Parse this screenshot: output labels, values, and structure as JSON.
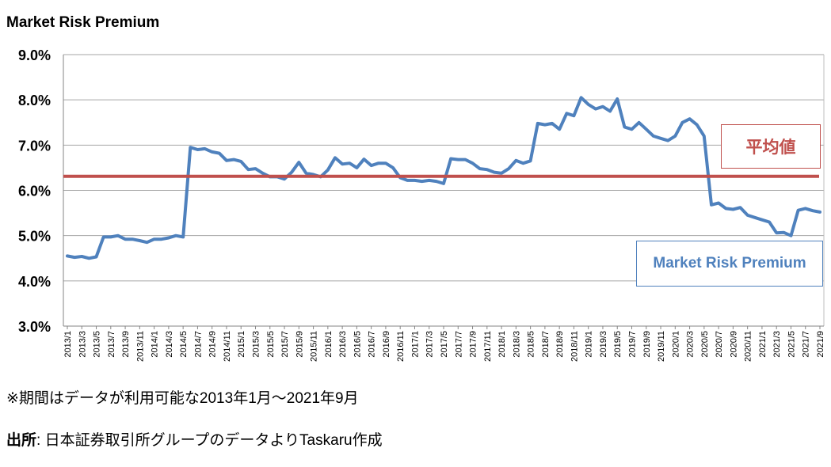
{
  "chart_data": {
    "type": "line",
    "title": "Market Risk Premium",
    "ylim": [
      3.0,
      9.0
    ],
    "y_ticks": [
      "9.0%",
      "8.0%",
      "7.0%",
      "6.0%",
      "5.0%",
      "4.0%",
      "3.0%"
    ],
    "grid": true,
    "x_labels": [
      "2013/1",
      "2013/3",
      "2013/5",
      "2013/7",
      "2013/9",
      "2013/11",
      "2014/1",
      "2014/3",
      "2014/5",
      "2014/7",
      "2014/9",
      "2014/11",
      "2015/1",
      "2015/3",
      "2015/5",
      "2015/7",
      "2015/9",
      "2015/11",
      "2016/1",
      "2016/3",
      "2016/5",
      "2016/7",
      "2016/9",
      "2016/11",
      "2017/1",
      "2017/3",
      "2017/5",
      "2017/7",
      "2017/9",
      "2017/11",
      "2018/1",
      "2018/3",
      "2018/5",
      "2018/7",
      "2018/9",
      "2018/11",
      "2019/1",
      "2019/3",
      "2019/5",
      "2019/7",
      "2019/9",
      "2019/11",
      "2020/1",
      "2020/3",
      "2020/5",
      "2020/7",
      "2020/9",
      "2020/11",
      "2021/1",
      "2021/3",
      "2021/5",
      "2021/7",
      "2021/9"
    ],
    "series": [
      {
        "name": "Market Risk Premium",
        "color": "#4f81bd",
        "values": [
          4.55,
          4.52,
          4.54,
          4.5,
          4.53,
          4.97,
          4.97,
          5.0,
          4.92,
          4.92,
          4.89,
          4.85,
          4.92,
          4.92,
          4.95,
          5.0,
          4.97,
          6.95,
          6.9,
          6.92,
          6.85,
          6.82,
          6.66,
          6.68,
          6.64,
          6.46,
          6.48,
          6.38,
          6.3,
          6.3,
          6.25,
          6.4,
          6.62,
          6.38,
          6.35,
          6.3,
          6.45,
          6.72,
          6.58,
          6.6,
          6.5,
          6.69,
          6.55,
          6.6,
          6.6,
          6.5,
          6.28,
          6.22,
          6.22,
          6.2,
          6.22,
          6.2,
          6.15,
          6.7,
          6.68,
          6.68,
          6.6,
          6.48,
          6.46,
          6.4,
          6.38,
          6.48,
          6.66,
          6.6,
          6.65,
          7.48,
          7.45,
          7.48,
          7.35,
          7.7,
          7.65,
          8.05,
          7.9,
          7.8,
          7.85,
          7.75,
          8.02,
          7.4,
          7.35,
          7.5,
          7.35,
          7.2,
          7.15,
          7.1,
          7.2,
          7.5,
          7.58,
          7.45,
          7.2,
          5.68,
          5.72,
          5.6,
          5.58,
          5.62,
          5.45,
          5.4,
          5.35,
          5.3,
          5.06,
          5.07,
          5.0,
          5.56,
          5.6,
          5.55,
          5.52
        ]
      },
      {
        "name": "平均値",
        "color": "#c0504d",
        "constant": 6.31
      }
    ]
  },
  "labels": {
    "average_box": "平均値",
    "series_box": "Market Risk Premium"
  },
  "footer": {
    "note": "※期間はデータが利用可能な2013年1月～2021年9月",
    "source_label": "出所",
    "source_text": ": 日本証券取引所グループのデータよりTaskaru作成"
  },
  "colors": {
    "series": "#4f81bd",
    "average": "#c0504d",
    "grid": "#a6a6a6"
  }
}
